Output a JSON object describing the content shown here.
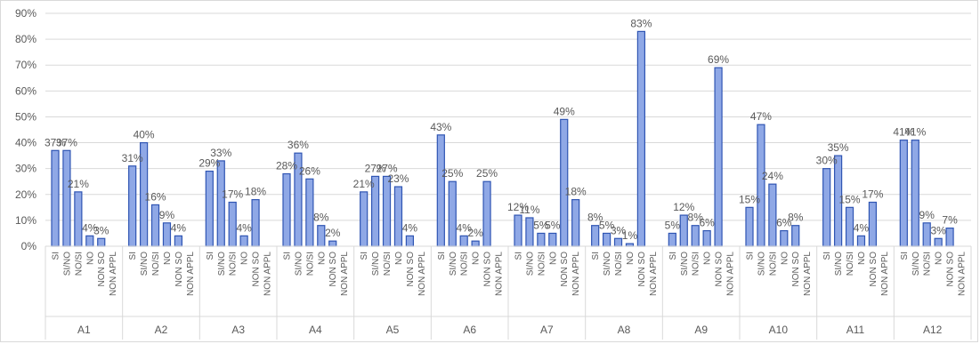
{
  "chart_data": {
    "type": "bar",
    "title": "",
    "xlabel": "",
    "ylabel": "",
    "ylim": [
      0,
      90
    ],
    "y_ticks": [
      "0%",
      "10%",
      "20%",
      "30%",
      "40%",
      "50%",
      "60%",
      "70%",
      "80%",
      "90%"
    ],
    "grid": true,
    "legend": "none",
    "bar_color": "#8fa8e6",
    "bar_edge_color": "#2f55b3",
    "categories": [
      "SI",
      "SI/NO",
      "NO/SI",
      "NO",
      "NON SO",
      "NON APPL"
    ],
    "groups": [
      {
        "name": "A1",
        "values": [
          37,
          37,
          21,
          4,
          3,
          0
        ],
        "labels": [
          "37%",
          "37%",
          "21%",
          "4%",
          "3%",
          ""
        ]
      },
      {
        "name": "A2",
        "values": [
          31,
          40,
          16,
          9,
          4,
          0
        ],
        "labels": [
          "31%",
          "40%",
          "16%",
          "9%",
          "4%",
          ""
        ]
      },
      {
        "name": "A3",
        "values": [
          29,
          33,
          17,
          4,
          18,
          0
        ],
        "labels": [
          "29%",
          "33%",
          "17%",
          "4%",
          "18%",
          ""
        ]
      },
      {
        "name": "A4",
        "values": [
          28,
          36,
          26,
          8,
          2,
          0
        ],
        "labels": [
          "28%",
          "36%",
          "26%",
          "8%",
          "2%",
          ""
        ]
      },
      {
        "name": "A5",
        "values": [
          21,
          27,
          27,
          23,
          4,
          0
        ],
        "labels": [
          "21%",
          "27%",
          "27%",
          "23%",
          "4%",
          ""
        ]
      },
      {
        "name": "A6",
        "values": [
          43,
          25,
          4,
          2,
          25,
          0
        ],
        "labels": [
          "43%",
          "25%",
          "4%",
          "2%",
          "25%",
          ""
        ]
      },
      {
        "name": "A7",
        "values": [
          12,
          11,
          5,
          5,
          49,
          18
        ],
        "labels": [
          "12%",
          "11%",
          "5%",
          "5%",
          "49%",
          "18%"
        ]
      },
      {
        "name": "A8",
        "values": [
          8,
          5,
          3,
          1,
          83,
          0
        ],
        "labels": [
          "8%",
          "5%",
          "3%",
          "1%",
          "83%",
          ""
        ]
      },
      {
        "name": "A9",
        "values": [
          5,
          12,
          8,
          6,
          69,
          0
        ],
        "labels": [
          "5%",
          "12%",
          "8%",
          "6%",
          "69%",
          ""
        ]
      },
      {
        "name": "A10",
        "values": [
          15,
          47,
          24,
          6,
          8,
          0
        ],
        "labels": [
          "15%",
          "47%",
          "24%",
          "6%",
          "8%",
          ""
        ]
      },
      {
        "name": "A11",
        "values": [
          30,
          35,
          15,
          4,
          17,
          0
        ],
        "labels": [
          "30%",
          "35%",
          "15%",
          "4%",
          "17%",
          ""
        ]
      },
      {
        "name": "A12",
        "values": [
          41,
          41,
          9,
          3,
          7,
          0
        ],
        "labels": [
          "41%",
          "41%",
          "9%",
          "3%",
          "7%",
          ""
        ]
      }
    ]
  }
}
